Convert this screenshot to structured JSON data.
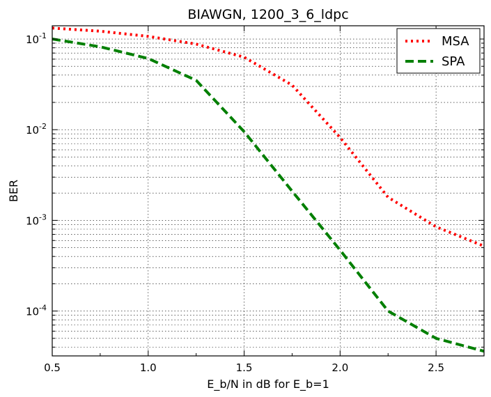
{
  "chart_data": {
    "type": "line",
    "title": "BIAWGN, 1200_3_6_ldpc",
    "xlabel": "E_b/N in dB for E_b=1",
    "ylabel": "BER",
    "xlim": [
      0.5,
      2.75
    ],
    "ylim": [
      3.2e-05,
      0.14
    ],
    "yscale": "log",
    "grid": true,
    "legend_position": "top-right",
    "xticks": [
      {
        "value": 0.5,
        "label": "0.5"
      },
      {
        "value": 1.0,
        "label": "1.0"
      },
      {
        "value": 1.5,
        "label": "1.5"
      },
      {
        "value": 2.0,
        "label": "2.0"
      },
      {
        "value": 2.5,
        "label": "2.5"
      }
    ],
    "yticks": [
      {
        "value": 0.1,
        "base": "10",
        "exp": "-1"
      },
      {
        "value": 0.01,
        "base": "10",
        "exp": "-2"
      },
      {
        "value": 0.001,
        "base": "10",
        "exp": "-3"
      },
      {
        "value": 0.0001,
        "base": "10",
        "exp": "-4"
      }
    ],
    "series": [
      {
        "name": "MSA",
        "color": "#ff0000",
        "style": "dotted",
        "x": [
          0.5,
          0.75,
          1.0,
          1.25,
          1.5,
          1.75,
          2.0,
          2.25,
          2.5,
          2.75
        ],
        "y": [
          0.132,
          0.122,
          0.107,
          0.088,
          0.063,
          0.031,
          0.0082,
          0.0018,
          0.00085,
          0.00052
        ]
      },
      {
        "name": "SPA",
        "color": "#007f00",
        "style": "dashed",
        "x": [
          0.5,
          0.75,
          1.0,
          1.25,
          1.5,
          1.75,
          2.0,
          2.25,
          2.5,
          2.75
        ],
        "y": [
          0.1,
          0.082,
          0.061,
          0.035,
          0.0095,
          0.0021,
          0.00047,
          0.0001,
          5e-05,
          3.6e-05
        ]
      }
    ]
  }
}
